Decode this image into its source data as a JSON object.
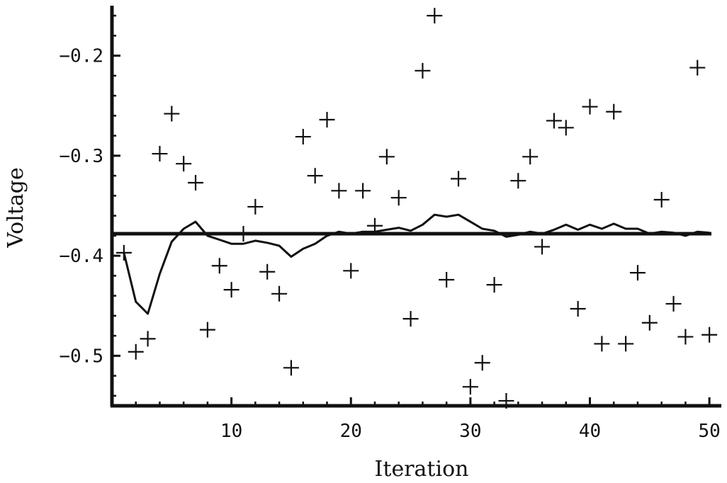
{
  "chart_data": {
    "type": "scatter",
    "xlabel": "Iteration",
    "ylabel": "Voltage",
    "title": "",
    "xlim": [
      0,
      51
    ],
    "ylim": [
      -0.55,
      -0.15
    ],
    "x_ticks": [
      10,
      20,
      30,
      40,
      50
    ],
    "y_ticks": [
      -0.5,
      -0.4,
      -0.3,
      -0.2
    ],
    "x_tick_labels": [
      "10",
      "20",
      "30",
      "40",
      "50"
    ],
    "y_tick_labels": [
      "-0.5",
      "-0.4",
      "-0.3",
      "-0.2"
    ],
    "reference_value": -0.378,
    "series": [
      {
        "marker": "plus",
        "x": [
          1,
          2,
          3,
          4,
          5,
          6,
          7,
          8,
          9,
          10,
          11,
          12,
          13,
          14,
          15,
          16,
          17,
          18,
          19,
          20,
          21,
          22,
          23,
          24,
          25,
          26,
          27,
          28,
          29,
          30,
          31,
          32,
          33,
          34,
          35,
          36,
          37,
          38,
          39,
          40,
          41,
          42,
          43,
          44,
          45,
          46,
          47,
          48,
          49,
          50
        ],
        "y": [
          -0.397,
          -0.496,
          -0.483,
          -0.298,
          -0.258,
          -0.308,
          -0.327,
          -0.474,
          -0.41,
          -0.434,
          -0.378,
          -0.351,
          -0.416,
          -0.438,
          -0.512,
          -0.281,
          -0.32,
          -0.264,
          -0.335,
          -0.415,
          -0.335,
          -0.37,
          -0.301,
          -0.342,
          -0.463,
          -0.215,
          -0.16,
          -0.424,
          -0.323,
          -0.531,
          -0.507,
          -0.429,
          -0.545,
          -0.325,
          -0.301,
          -0.391,
          -0.265,
          -0.272,
          -0.453,
          -0.251,
          -0.488,
          -0.256,
          -0.488,
          -0.417,
          -0.467,
          -0.344,
          -0.448,
          -0.481,
          -0.212,
          -0.479
        ]
      },
      {
        "marker": "line",
        "x": [
          1,
          2,
          3,
          4,
          5,
          6,
          7,
          8,
          9,
          10,
          11,
          12,
          13,
          14,
          15,
          16,
          17,
          18,
          19,
          20,
          21,
          22,
          23,
          24,
          25,
          26,
          27,
          28,
          29,
          30,
          31,
          32,
          33,
          34,
          35,
          36,
          37,
          38,
          39,
          40,
          41,
          42,
          43,
          44,
          45,
          46,
          47,
          48,
          49,
          50
        ],
        "y": [
          -0.397,
          -0.446,
          -0.458,
          -0.418,
          -0.386,
          -0.373,
          -0.366,
          -0.38,
          -0.384,
          -0.388,
          -0.388,
          -0.385,
          -0.387,
          -0.39,
          -0.401,
          -0.393,
          -0.388,
          -0.38,
          -0.376,
          -0.378,
          -0.376,
          -0.376,
          -0.374,
          -0.372,
          -0.375,
          -0.369,
          -0.359,
          -0.361,
          -0.359,
          -0.366,
          -0.373,
          -0.375,
          -0.381,
          -0.379,
          -0.376,
          -0.378,
          -0.374,
          -0.369,
          -0.374,
          -0.369,
          -0.373,
          -0.368,
          -0.373,
          -0.373,
          -0.378,
          -0.376,
          -0.377,
          -0.38,
          -0.376,
          -0.377
        ]
      }
    ],
    "grid": false
  }
}
